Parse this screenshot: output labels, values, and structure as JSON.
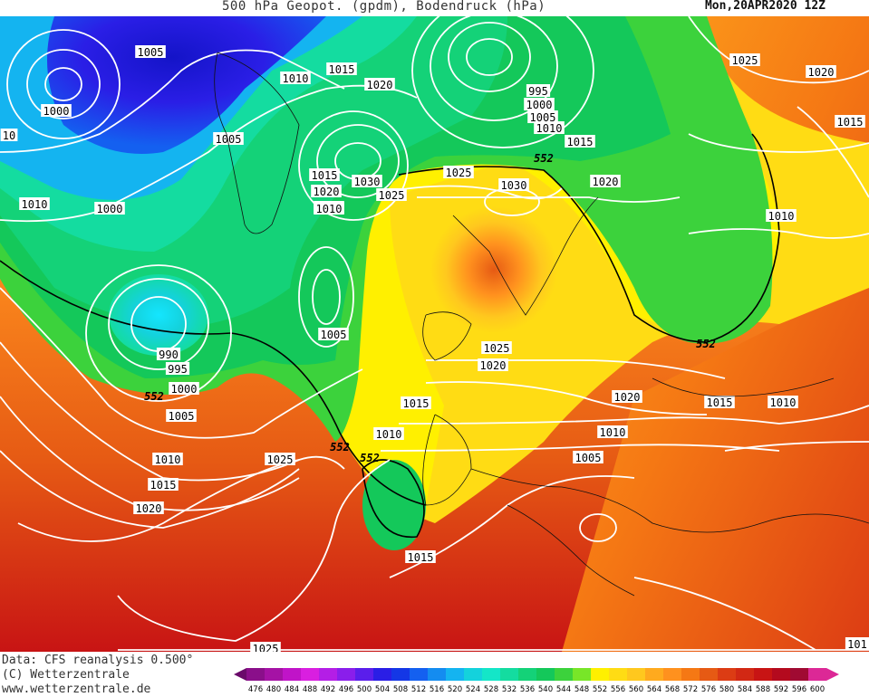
{
  "header": {
    "title": "500 hPa Geopot. (gpdm), Bodendruck (hPa)",
    "datetime": "Mon,20APR2020 12Z"
  },
  "footer": {
    "data_source": "Data: CFS reanalysis 0.500°",
    "copyright": "(C) Wetterzentrale",
    "website": "www.wetterzentrale.de"
  },
  "colorbar": {
    "ticks": [
      "476",
      "480",
      "484",
      "488",
      "492",
      "496",
      "500",
      "504",
      "508",
      "512",
      "516",
      "520",
      "524",
      "528",
      "532",
      "536",
      "540",
      "544",
      "548",
      "552",
      "556",
      "560",
      "564",
      "568",
      "572",
      "576",
      "580",
      "584",
      "588",
      "592",
      "596",
      "600"
    ],
    "colors": [
      "#6a0a6a",
      "#8a0f8a",
      "#a512a5",
      "#c014c8",
      "#d91fe0",
      "#b41ee6",
      "#8a1eeb",
      "#5a1eeb",
      "#2a1ee6",
      "#1437e6",
      "#1460f0",
      "#148cf0",
      "#14b4f0",
      "#14d2dc",
      "#14e6c8",
      "#14dca0",
      "#14d278",
      "#14c85a",
      "#3cd23c",
      "#78e628",
      "#fff000",
      "#ffdc14",
      "#ffc81e",
      "#ffaa1e",
      "#ff911e",
      "#f57814",
      "#e65a14",
      "#dc3c14",
      "#d22814",
      "#c81414",
      "#b40a1e",
      "#a00a32",
      "#dc2896"
    ]
  },
  "map": {
    "contour_labels": [
      "1005",
      "1010",
      "1015",
      "1020",
      "1000",
      "10",
      "1010",
      "1000",
      "1005",
      "1010",
      "1020",
      "1015",
      "1030",
      "1010",
      "1025",
      "995",
      "1000",
      "1005",
      "1010",
      "1015",
      "552",
      "1025",
      "1030",
      "1020",
      "1025",
      "1020",
      "1015",
      "1010",
      "990",
      "995",
      "1000",
      "552",
      "1005",
      "1005",
      "1025",
      "1020",
      "1015",
      "1010",
      "1020",
      "1015",
      "1010",
      "1010",
      "552",
      "552",
      "1005",
      "1010",
      "1025",
      "1015",
      "1020",
      "1015",
      "1025",
      "101",
      "552"
    ]
  }
}
